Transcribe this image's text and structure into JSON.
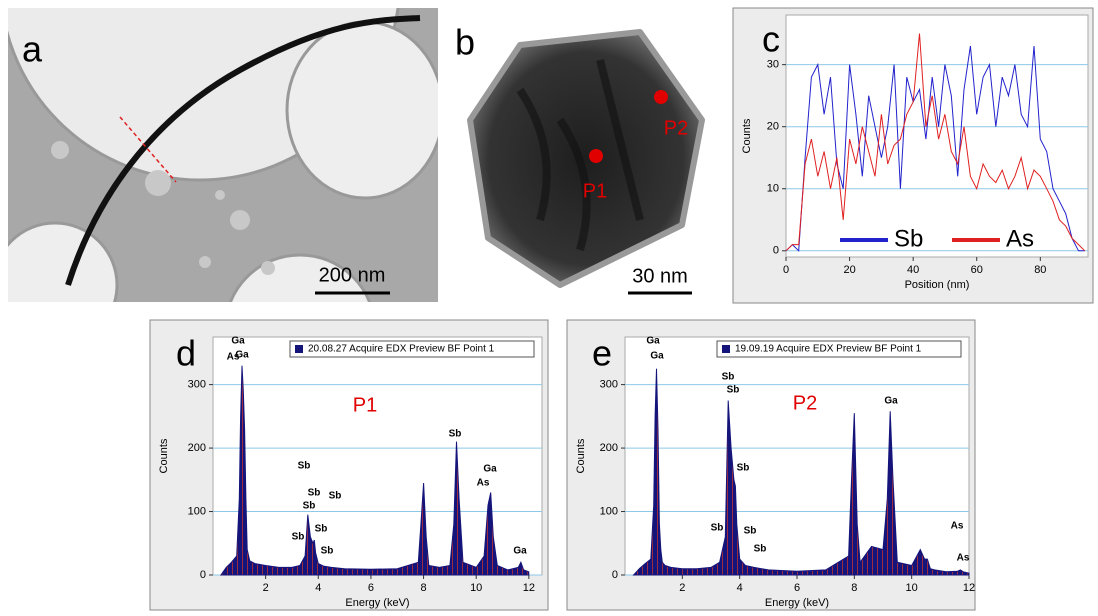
{
  "images": [
    {
      "label": "a",
      "scale_bar": "200 nm"
    },
    {
      "label": "b",
      "scale_bar": "30 nm",
      "points": [
        "P1",
        "P2"
      ]
    }
  ],
  "chart_data": [
    {
      "type": "line",
      "panel": "c",
      "x_label": "Position (nm)",
      "y_label": "Counts",
      "x": [
        0,
        2,
        4,
        6,
        8,
        10,
        12,
        14,
        16,
        18,
        20,
        22,
        24,
        26,
        28,
        30,
        32,
        34,
        36,
        38,
        40,
        42,
        44,
        46,
        48,
        50,
        52,
        54,
        56,
        58,
        60,
        62,
        64,
        66,
        68,
        70,
        72,
        74,
        76,
        78,
        80,
        82,
        84,
        86,
        88,
        90,
        92,
        94
      ],
      "series": [
        {
          "name": "Sb",
          "color": "#2222cc",
          "values": [
            0,
            1,
            0,
            15,
            28,
            30,
            22,
            28,
            14,
            10,
            30,
            22,
            12,
            25,
            20,
            15,
            20,
            30,
            10,
            28,
            24,
            26,
            18,
            28,
            20,
            30,
            25,
            12,
            26,
            33,
            22,
            28,
            30,
            20,
            28,
            25,
            30,
            22,
            20,
            33,
            18,
            16,
            10,
            8,
            6,
            2,
            0,
            0
          ]
        },
        {
          "name": "As",
          "color": "#e02020",
          "values": [
            0,
            1,
            1,
            14,
            18,
            12,
            16,
            10,
            15,
            5,
            18,
            14,
            20,
            16,
            12,
            22,
            14,
            17,
            18,
            22,
            24,
            35,
            20,
            25,
            18,
            22,
            16,
            14,
            20,
            12,
            10,
            14,
            12,
            11,
            13,
            10,
            12,
            15,
            10,
            13,
            12,
            10,
            8,
            5,
            4,
            2,
            1,
            0
          ]
        }
      ],
      "xlim": [
        0,
        95
      ],
      "ylim": [
        -1,
        38
      ],
      "xticks": [
        0,
        20,
        40,
        60,
        80
      ],
      "yticks": [
        0,
        10,
        20,
        30
      ],
      "grid": true,
      "legend": "bottom"
    },
    {
      "type": "area",
      "panel": "d",
      "x_label": "Energy (keV)",
      "y_label": "Counts",
      "point_label": "P1",
      "x": [
        0.3,
        0.5,
        0.7,
        0.9,
        1.0,
        1.05,
        1.1,
        1.15,
        1.2,
        1.25,
        1.3,
        1.4,
        1.6,
        2.0,
        2.5,
        3.0,
        3.3,
        3.5,
        3.6,
        3.7,
        3.8,
        3.85,
        3.9,
        4.0,
        4.2,
        4.5,
        5,
        6,
        7,
        7.8,
        7.9,
        8.0,
        8.1,
        8.2,
        8.6,
        9.0,
        9.15,
        9.25,
        9.35,
        9.5,
        10.0,
        10.3,
        10.45,
        10.55,
        10.65,
        10.8,
        11.2,
        11.6,
        11.7,
        11.8,
        12
      ],
      "series": [
        {
          "name": "20.08.27 Acquire EDX Preview BF Point 1",
          "color": "#14147a",
          "values": [
            0,
            12,
            20,
            30,
            120,
            250,
            330,
            290,
            230,
            120,
            40,
            22,
            18,
            15,
            12,
            12,
            15,
            30,
            95,
            60,
            50,
            55,
            35,
            18,
            14,
            12,
            10,
            9,
            10,
            20,
            80,
            145,
            60,
            15,
            12,
            15,
            80,
            210,
            120,
            20,
            12,
            30,
            110,
            130,
            60,
            15,
            8,
            12,
            20,
            8,
            5
          ]
        }
      ],
      "annotations": [
        "Ga",
        "Ga",
        "Sb",
        "Sb",
        "Sb",
        "Sb",
        "Sb",
        "Sb",
        "Sb",
        "Sb",
        "Ga",
        "As",
        "Ga",
        "As"
      ],
      "xlim": [
        0,
        12.5
      ],
      "ylim": [
        0,
        375
      ],
      "xticks": [
        2,
        4,
        6,
        8,
        10,
        12
      ],
      "yticks": [
        0,
        100,
        200,
        300
      ],
      "grid": true,
      "legend": "top-right"
    },
    {
      "type": "area",
      "panel": "e",
      "x_label": "Energy (keV)",
      "y_label": "Counts",
      "point_label": "P2",
      "x": [
        0.3,
        0.5,
        0.7,
        0.9,
        1.0,
        1.05,
        1.1,
        1.15,
        1.2,
        1.25,
        1.3,
        1.4,
        1.6,
        2.0,
        2.5,
        3.0,
        3.3,
        3.5,
        3.6,
        3.7,
        3.8,
        3.85,
        3.9,
        4.0,
        4.2,
        4.5,
        5,
        6,
        7,
        7.8,
        7.9,
        8.0,
        8.1,
        8.2,
        8.6,
        9.0,
        9.15,
        9.25,
        9.35,
        9.5,
        10.0,
        10.3,
        10.45,
        10.55,
        10.65,
        10.8,
        11.2,
        11.6,
        11.7,
        11.8,
        12
      ],
      "series": [
        {
          "name": "19.09.19 Acquire EDX Preview BF Point 1",
          "color": "#14147a",
          "values": [
            0,
            10,
            18,
            25,
            110,
            250,
            325,
            230,
            80,
            40,
            20,
            15,
            12,
            10,
            10,
            12,
            20,
            60,
            275,
            200,
            150,
            140,
            80,
            25,
            15,
            12,
            8,
            6,
            8,
            30,
            150,
            255,
            80,
            20,
            45,
            40,
            120,
            258,
            150,
            20,
            15,
            40,
            25,
            25,
            10,
            8,
            5,
            6,
            8,
            5,
            3
          ]
        }
      ],
      "annotations": [
        "Ga",
        "Ga",
        "Sb",
        "Sb",
        "Sb",
        "Sb",
        "Sb",
        "Sb",
        "Ga",
        "As",
        "As"
      ],
      "xlim": [
        0,
        12
      ],
      "ylim": [
        0,
        375
      ],
      "xticks": [
        2,
        4,
        6,
        8,
        10,
        12
      ],
      "yticks": [
        0,
        100,
        200,
        300
      ],
      "grid": true,
      "legend": "top-right"
    }
  ]
}
